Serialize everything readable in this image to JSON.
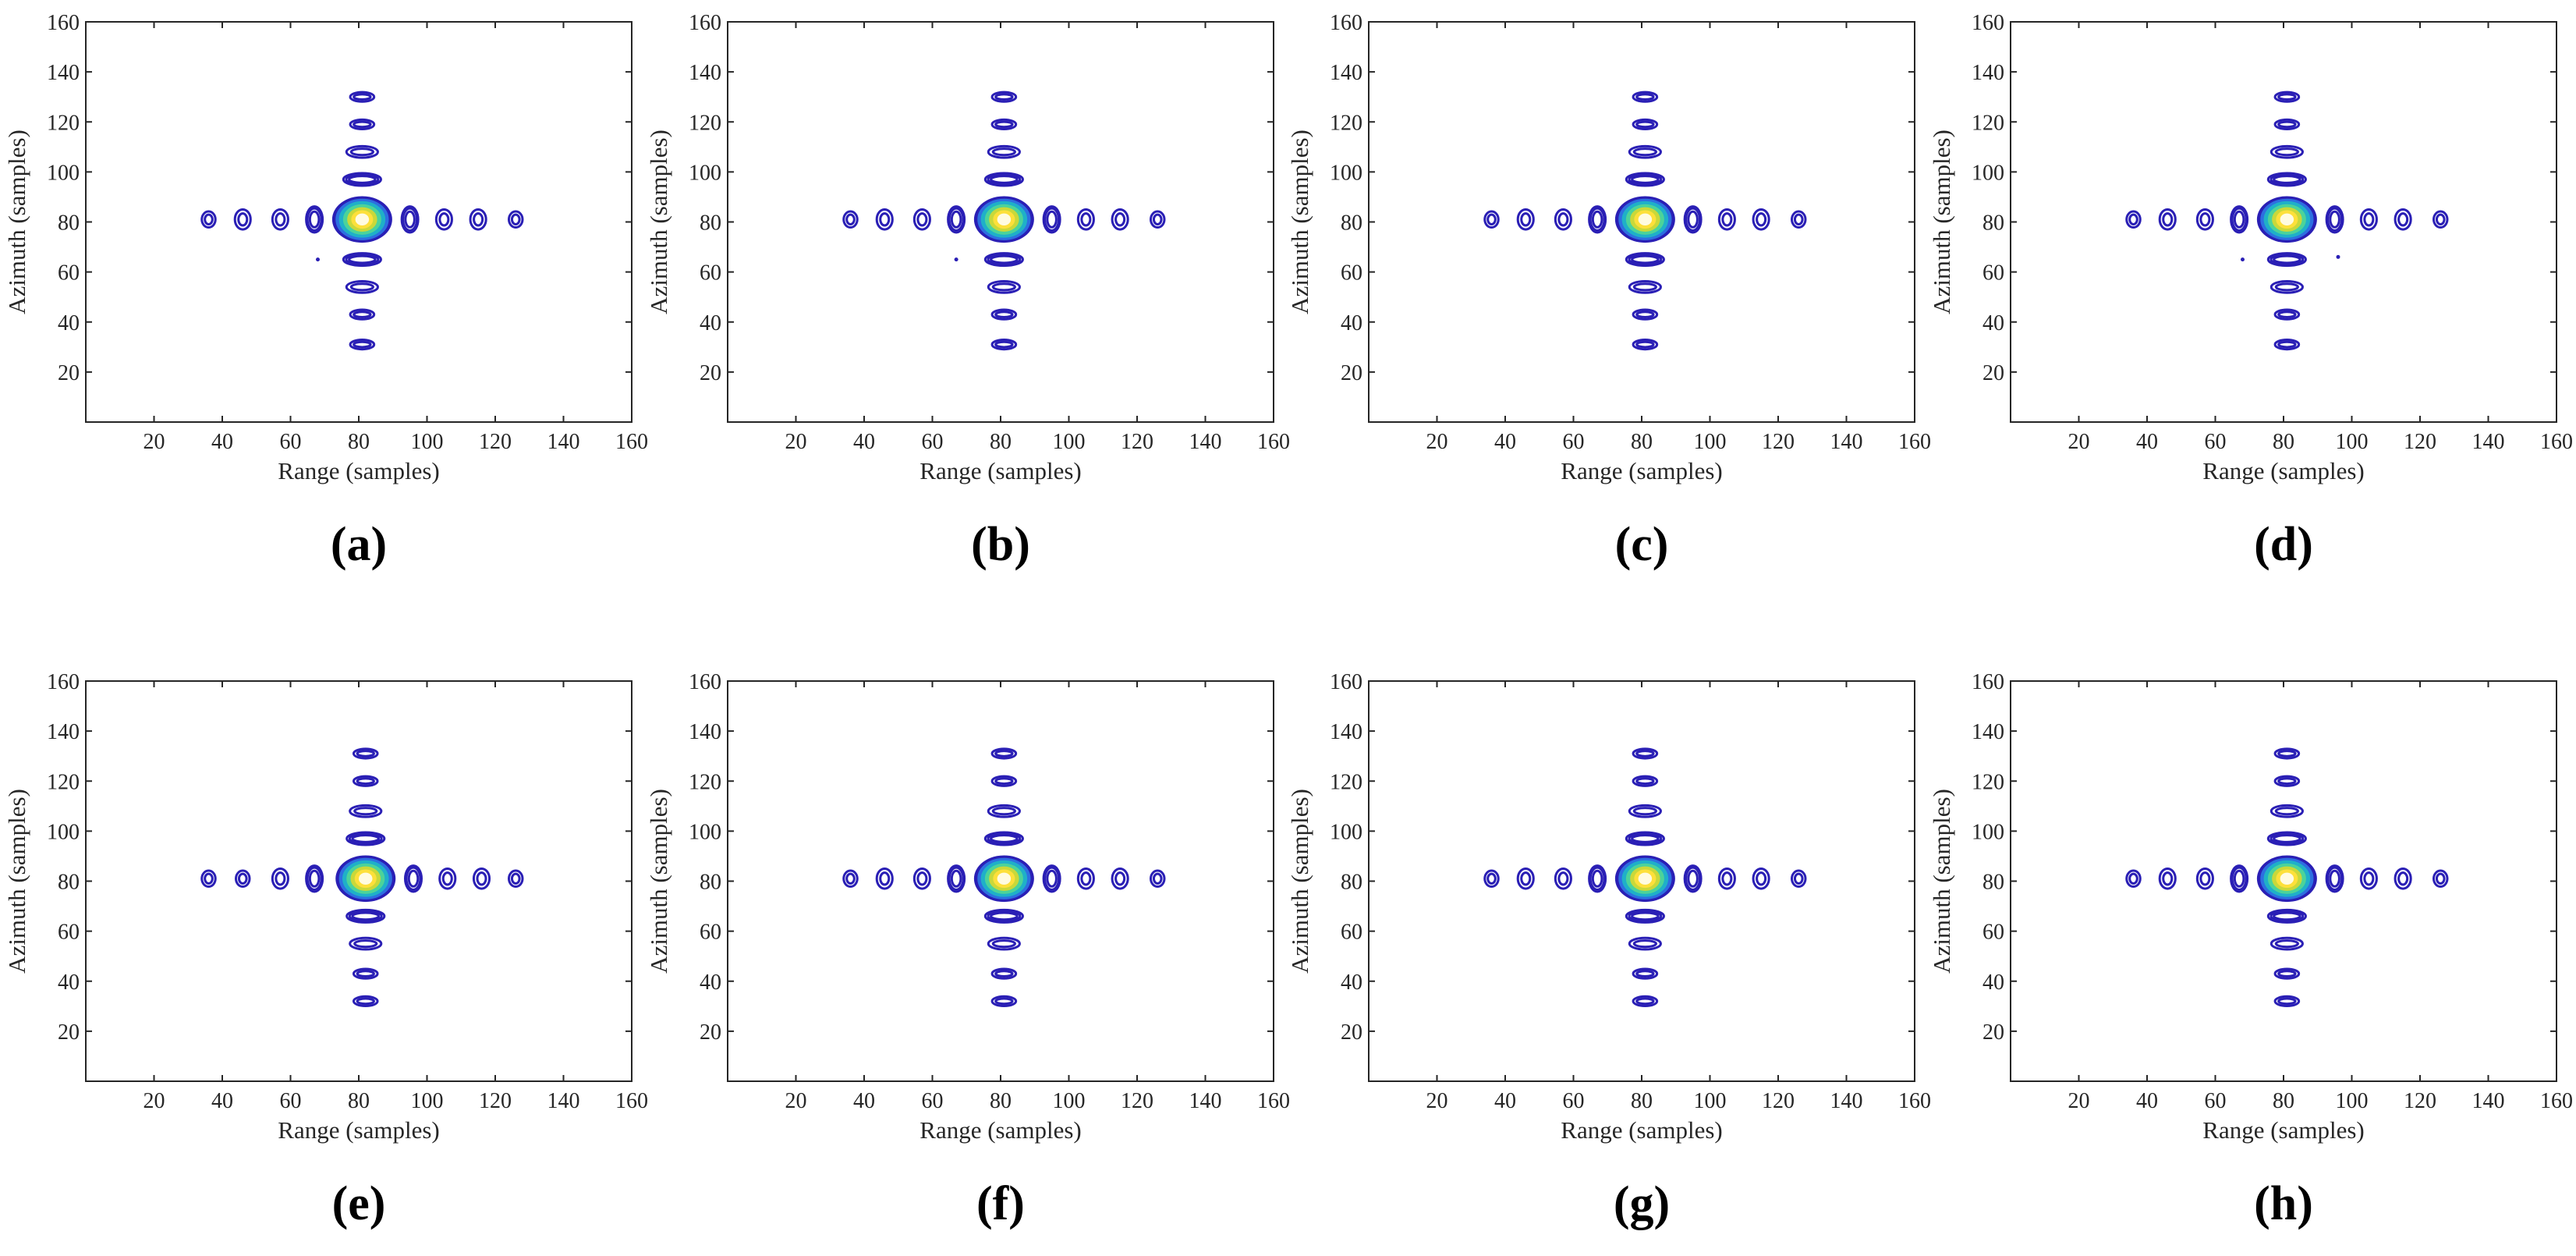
{
  "chart_data": {
    "type": "contour",
    "panel_count": 8,
    "xlabel": "Range (samples)",
    "ylabel": "Azimuth (samples)",
    "xlim": [
      0,
      160
    ],
    "ylim": [
      0,
      160
    ],
    "xticks": [
      20,
      40,
      60,
      80,
      100,
      120,
      140,
      160
    ],
    "yticks": [
      20,
      40,
      60,
      80,
      100,
      120,
      140,
      160
    ],
    "xtick_labels": [
      "20",
      "40",
      "60",
      "80",
      "100",
      "120",
      "140",
      "160"
    ],
    "ytick_labels": [
      "20",
      "40",
      "60",
      "80",
      "100",
      "120",
      "140",
      "160"
    ],
    "colormap": [
      "#3a2ea8",
      "#2d6fe0",
      "#1fb0c8",
      "#4cd39a",
      "#c9d83a",
      "#fde03a",
      "#fffbe0"
    ],
    "contour_color": "#2a1fb5",
    "panels": [
      {
        "label": "(a)",
        "peak": [
          81,
          81
        ],
        "range_sidelobes": [
          36,
          46,
          57,
          67,
          95,
          105,
          115,
          126
        ],
        "azimuth_sidelobes": [
          31,
          43,
          54,
          65,
          97,
          108,
          119,
          130
        ],
        "spurious_points": [
          [
            68,
            65
          ]
        ]
      },
      {
        "label": "(b)",
        "peak": [
          81,
          81
        ],
        "range_sidelobes": [
          36,
          46,
          57,
          67,
          95,
          105,
          115,
          126
        ],
        "azimuth_sidelobes": [
          31,
          43,
          54,
          65,
          97,
          108,
          119,
          130
        ],
        "spurious_points": [
          [
            67,
            65
          ]
        ]
      },
      {
        "label": "(c)",
        "peak": [
          81,
          81
        ],
        "range_sidelobes": [
          36,
          46,
          57,
          67,
          95,
          105,
          115,
          126
        ],
        "azimuth_sidelobes": [
          31,
          43,
          54,
          65,
          97,
          108,
          119,
          130
        ],
        "spurious_points": []
      },
      {
        "label": "(d)",
        "peak": [
          81,
          81
        ],
        "range_sidelobes": [
          36,
          46,
          57,
          67,
          95,
          105,
          115,
          126
        ],
        "azimuth_sidelobes": [
          31,
          43,
          54,
          65,
          97,
          108,
          119,
          130
        ],
        "spurious_points": [
          [
            68,
            65
          ],
          [
            96,
            66
          ]
        ]
      },
      {
        "label": "(e)",
        "peak": [
          82,
          81
        ],
        "range_sidelobes": [
          36,
          46,
          57,
          67,
          96,
          106,
          116,
          126
        ],
        "azimuth_sidelobes": [
          32,
          43,
          55,
          66,
          97,
          108,
          120,
          131
        ],
        "spurious_points": []
      },
      {
        "label": "(f)",
        "peak": [
          81,
          81
        ],
        "range_sidelobes": [
          36,
          46,
          57,
          67,
          95,
          105,
          115,
          126
        ],
        "azimuth_sidelobes": [
          32,
          43,
          55,
          66,
          97,
          108,
          120,
          131
        ],
        "spurious_points": []
      },
      {
        "label": "(g)",
        "peak": [
          81,
          81
        ],
        "range_sidelobes": [
          36,
          46,
          57,
          67,
          95,
          105,
          115,
          126
        ],
        "azimuth_sidelobes": [
          32,
          43,
          55,
          66,
          97,
          108,
          120,
          131
        ],
        "spurious_points": []
      },
      {
        "label": "(h)",
        "peak": [
          81,
          81
        ],
        "range_sidelobes": [
          36,
          46,
          57,
          67,
          95,
          105,
          115,
          126
        ],
        "azimuth_sidelobes": [
          32,
          43,
          55,
          66,
          97,
          108,
          120,
          131
        ],
        "spurious_points": []
      }
    ]
  }
}
